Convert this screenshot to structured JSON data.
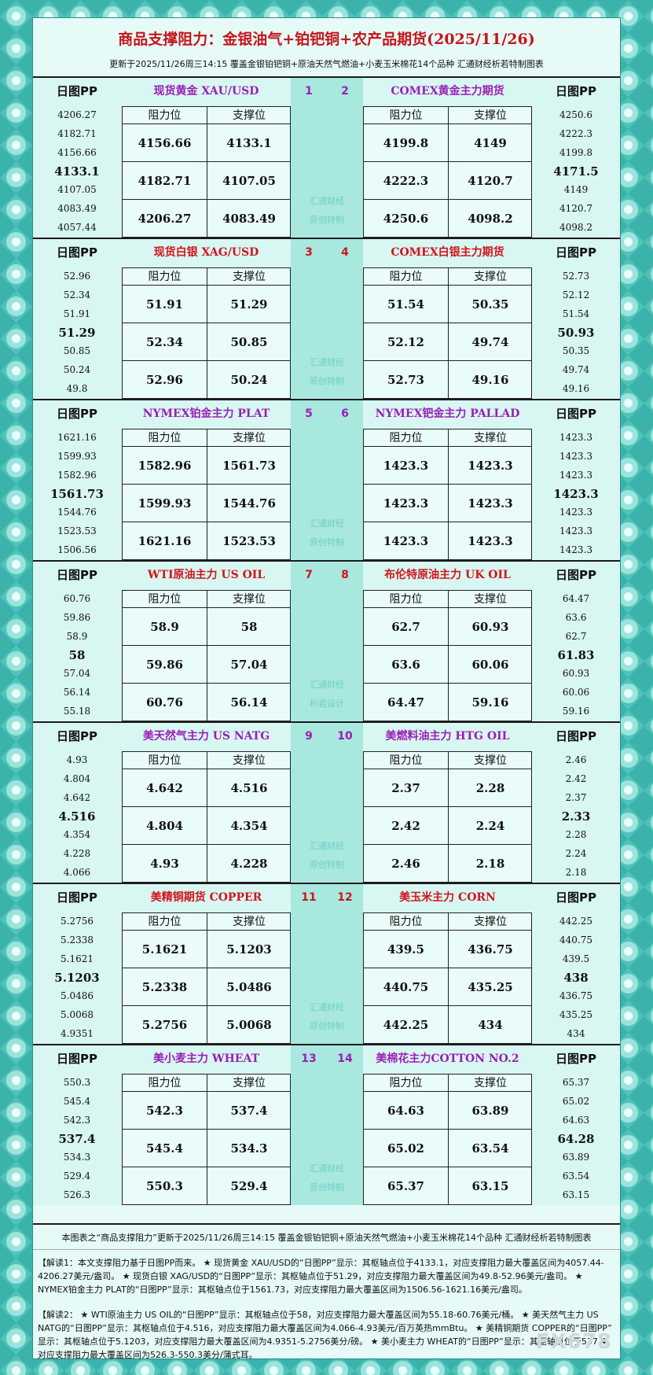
{
  "header": {
    "title": "商品支撑阻力：金银油气+铂钯铜+农产品期货(2025/11/26)",
    "subtitle": "更新于2025/11/26周三14:15 覆盖金银铂钯铜+原油天然气燃油+小麦玉米棉花14个品种 汇通财经析若特制图表"
  },
  "sections": [
    {
      "left": {
        "pp_label": "日图PP",
        "name": "现货黄金 XAU/USD",
        "number": "1",
        "pp_values": [
          "4206.27",
          "4182.71",
          "4156.66",
          "4133.1",
          "4107.05",
          "4083.49",
          "4057.44"
        ],
        "table": {
          "headers": [
            "阻力位",
            "支撑位"
          ],
          "rows": [
            [
              "4156.66",
              "4133.1"
            ],
            [
              "4182.71",
              "4107.05"
            ],
            [
              "4206.27",
              "4083.49"
            ]
          ]
        }
      },
      "right": {
        "pp_label": "日图PP",
        "name": "COMEX黄金主力期货",
        "number": "2",
        "pp_values": [
          "4250.6",
          "4222.3",
          "4199.8",
          "4171.5",
          "4149",
          "4120.7",
          "4098.2"
        ],
        "table": {
          "headers": [
            "阻力位",
            "支撑位"
          ],
          "rows": [
            [
              "4199.8",
              "4149"
            ],
            [
              "4222.3",
              "4120.7"
            ],
            [
              "4250.6",
              "4098.2"
            ]
          ]
        }
      },
      "watermark": [
        "汇通财经",
        "原创特制"
      ]
    },
    {
      "left": {
        "pp_label": "日图PP",
        "name": "现货白银 XAG/USD",
        "number": "3",
        "pp_values": [
          "52.96",
          "52.34",
          "51.91",
          "51.29",
          "50.85",
          "50.24",
          "49.8"
        ],
        "table": {
          "headers": [
            "阻力位",
            "支撑位"
          ],
          "rows": [
            [
              "51.91",
              "51.29"
            ],
            [
              "52.34",
              "50.85"
            ],
            [
              "52.96",
              "50.24"
            ]
          ]
        }
      },
      "right": {
        "pp_label": "日图PP",
        "name": "COMEX白银主力期货",
        "number": "4",
        "pp_values": [
          "52.73",
          "52.12",
          "51.54",
          "50.93",
          "50.35",
          "49.74",
          "49.16"
        ],
        "table": {
          "headers": [
            "阻力位",
            "支撑位"
          ],
          "rows": [
            [
              "51.54",
              "50.35"
            ],
            [
              "52.12",
              "49.74"
            ],
            [
              "52.73",
              "49.16"
            ]
          ]
        }
      },
      "watermark": [
        "汇通财经",
        "原创特制"
      ]
    },
    {
      "left": {
        "pp_label": "日图PP",
        "name": "NYMEX铂金主力 PLAT",
        "number": "5",
        "pp_values": [
          "1621.16",
          "1599.93",
          "1582.96",
          "1561.73",
          "1544.76",
          "1523.53",
          "1506.56"
        ],
        "table": {
          "headers": [
            "阻力位",
            "支撑位"
          ],
          "rows": [
            [
              "1582.96",
              "1561.73"
            ],
            [
              "1599.93",
              "1544.76"
            ],
            [
              "1621.16",
              "1523.53"
            ]
          ]
        }
      },
      "right": {
        "pp_label": "日图PP",
        "name": "NYMEX钯金主力 PALLAD",
        "number": "6",
        "pp_values": [
          "1423.3",
          "1423.3",
          "1423.3",
          "1423.3",
          "1423.3",
          "1423.3",
          "1423.3"
        ],
        "table": {
          "headers": [
            "阻力位",
            "支撑位"
          ],
          "rows": [
            [
              "1423.3",
              "1423.3"
            ],
            [
              "1423.3",
              "1423.3"
            ],
            [
              "1423.3",
              "1423.3"
            ]
          ]
        }
      },
      "watermark": [
        "汇通财经",
        "原创特制"
      ]
    },
    {
      "left": {
        "pp_label": "日图PP",
        "name": "WTI原油主力 US OIL",
        "number": "7",
        "pp_values": [
          "60.76",
          "59.86",
          "58.9",
          "58",
          "57.04",
          "56.14",
          "55.18"
        ],
        "table": {
          "headers": [
            "阻力位",
            "支撑位"
          ],
          "rows": [
            [
              "58.9",
              "58"
            ],
            [
              "59.86",
              "57.04"
            ],
            [
              "60.76",
              "56.14"
            ]
          ]
        }
      },
      "right": {
        "pp_label": "日图PP",
        "name": "布伦特原油主力 UK OIL",
        "number": "8",
        "pp_values": [
          "64.47",
          "63.6",
          "62.7",
          "61.83",
          "60.93",
          "60.06",
          "59.16"
        ],
        "table": {
          "headers": [
            "阻力位",
            "支撑位"
          ],
          "rows": [
            [
              "62.7",
              "60.93"
            ],
            [
              "63.6",
              "60.06"
            ],
            [
              "64.47",
              "59.16"
            ]
          ]
        }
      },
      "watermark": [
        "汇通财经",
        "析若设计"
      ]
    },
    {
      "left": {
        "pp_label": "日图PP",
        "name": "美天然气主力 US NATG",
        "number": "9",
        "pp_values": [
          "4.93",
          "4.804",
          "4.642",
          "4.516",
          "4.354",
          "4.228",
          "4.066"
        ],
        "table": {
          "headers": [
            "阻力位",
            "支撑位"
          ],
          "rows": [
            [
              "4.642",
              "4.516"
            ],
            [
              "4.804",
              "4.354"
            ],
            [
              "4.93",
              "4.228"
            ]
          ]
        }
      },
      "right": {
        "pp_label": "日图PP",
        "name": "美燃料油主力 HTG OIL",
        "number": "10",
        "pp_values": [
          "2.46",
          "2.42",
          "2.37",
          "2.33",
          "2.28",
          "2.24",
          "2.18"
        ],
        "table": {
          "headers": [
            "阻力位",
            "支撑位"
          ],
          "rows": [
            [
              "2.37",
              "2.28"
            ],
            [
              "2.42",
              "2.24"
            ],
            [
              "2.46",
              "2.18"
            ]
          ]
        }
      },
      "watermark": [
        "汇通财经",
        "原创特制"
      ]
    },
    {
      "left": {
        "pp_label": "日图PP",
        "name": "美精铜期货 COPPER",
        "number": "11",
        "pp_values": [
          "5.2756",
          "5.2338",
          "5.1621",
          "5.1203",
          "5.0486",
          "5.0068",
          "4.9351"
        ],
        "table": {
          "headers": [
            "阻力位",
            "支撑位"
          ],
          "rows": [
            [
              "5.1621",
              "5.1203"
            ],
            [
              "5.2338",
              "5.0486"
            ],
            [
              "5.2756",
              "5.0068"
            ]
          ]
        }
      },
      "right": {
        "pp_label": "日图PP",
        "name": "美玉米主力 CORN",
        "number": "12",
        "pp_values": [
          "442.25",
          "440.75",
          "439.5",
          "438",
          "436.75",
          "435.25",
          "434"
        ],
        "table": {
          "headers": [
            "阻力位",
            "支撑位"
          ],
          "rows": [
            [
              "439.5",
              "436.75"
            ],
            [
              "440.75",
              "435.25"
            ],
            [
              "442.25",
              "434"
            ]
          ]
        }
      },
      "watermark": [
        "汇通财经",
        "原创特制"
      ]
    },
    {
      "left": {
        "pp_label": "日图PP",
        "name": "美小麦主力 WHEAT",
        "number": "13",
        "pp_values": [
          "550.3",
          "545.4",
          "542.3",
          "537.4",
          "534.3",
          "529.4",
          "526.3"
        ],
        "table": {
          "headers": [
            "阻力位",
            "支撑位"
          ],
          "rows": [
            [
              "542.3",
              "537.4"
            ],
            [
              "545.4",
              "534.3"
            ],
            [
              "550.3",
              "529.4"
            ]
          ]
        }
      },
      "right": {
        "pp_label": "日图PP",
        "name": "美棉花主力COTTON NO.2",
        "number": "14",
        "pp_values": [
          "65.37",
          "65.02",
          "64.63",
          "64.28",
          "63.89",
          "63.54",
          "63.15"
        ],
        "table": {
          "headers": [
            "阻力位",
            "支撑位"
          ],
          "rows": [
            [
              "64.63",
              "63.89"
            ],
            [
              "65.02",
              "63.54"
            ],
            [
              "65.37",
              "63.15"
            ]
          ]
        }
      },
      "watermark": [
        "汇通财经",
        "原创特制"
      ]
    }
  ],
  "footer": {
    "caption": "本图表之“商品支撑阻力”更新于2025/11/26周三14:15 覆盖金银铂钯铜+原油天然气燃油+小麦玉米棉花14个品种 汇通财经析若特制图表",
    "notes": [
      "【解读1：本文支撑阻力基于日图PP而来。 ★ 现货黄金 XAU/USD的“日图PP”显示：其枢轴点位于4133.1，对应支撑阻力最大覆盖区间为4057.44-4206.27美元/盎司。 ★ 现货白银 XAG/USD的“日图PP”显示：其枢轴点位于51.29，对应支撑阻力最大覆盖区间为49.8-52.96美元/盎司。 ★ NYMEX铂金主力 PLAT的“日图PP”显示：其枢轴点位于1561.73，对应支撑阻力最大覆盖区间为1506.56-1621.16美元/盎司。",
      "【解读2： ★ WTI原油主力 US OIL的“日图PP”显示：其枢轴点位于58，对应支撑阻力最大覆盖区间为55.18-60.76美元/桶。 ★ 美天然气主力 US NATG的“日图PP”显示：其枢轴点位于4.516，对应支撑阻力最大覆盖区间为4.066-4.93美元/百万英热mmBtu。 ★ 美精铜期货 COPPER的“日图PP”显示：其枢轴点位于5.1203，对应支撑阻力最大覆盖区间为4.9351-5.2756美分/磅。 ★ 美小麦主力 WHEAT的“日图PP”显示：其枢轴点位于537.4，对应支撑阻力最大覆盖区间为526.3-550.3美分/蒲式耳。"
    ],
    "logo": "FX678"
  }
}
